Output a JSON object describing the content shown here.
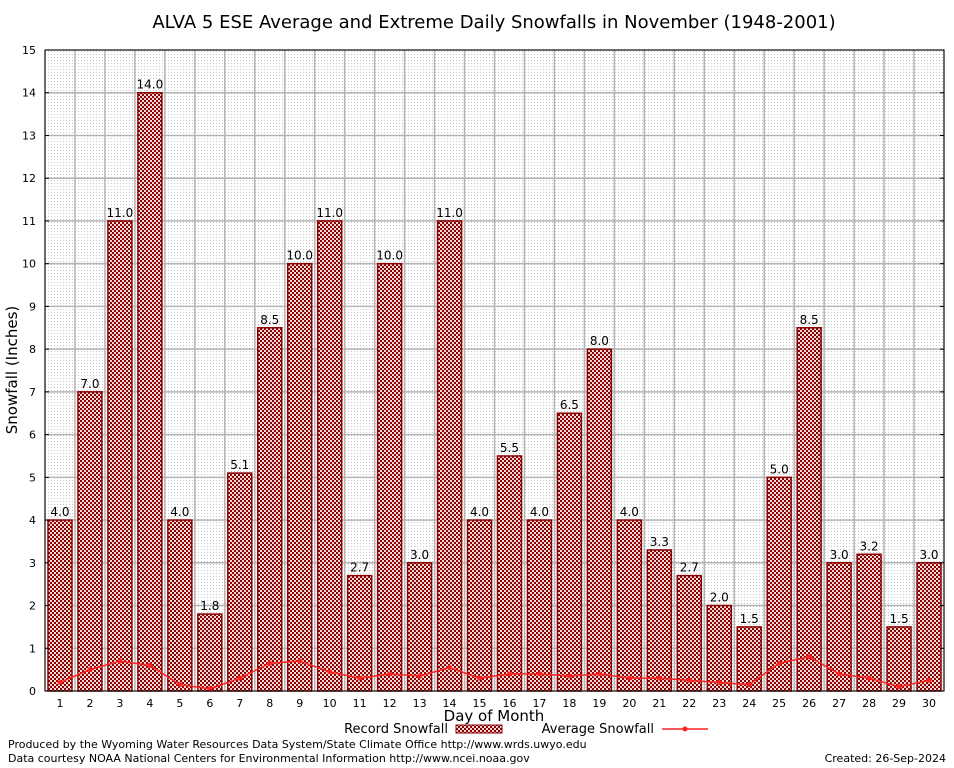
{
  "chart_data": {
    "type": "bar",
    "title": "ALVA 5 ESE Average and Extreme Daily Snowfalls in November (1948-2001)",
    "xlabel": "Day of Month",
    "ylabel": "Snowfall (Inches)",
    "ylim": [
      0,
      15
    ],
    "y_ticks": [
      0,
      1,
      2,
      3,
      4,
      5,
      6,
      7,
      8,
      9,
      10,
      11,
      12,
      13,
      14,
      15
    ],
    "grid": true,
    "legend_position": "bottom",
    "categories": [
      "1",
      "2",
      "3",
      "4",
      "5",
      "6",
      "7",
      "8",
      "9",
      "10",
      "11",
      "12",
      "13",
      "14",
      "15",
      "16",
      "17",
      "18",
      "19",
      "20",
      "21",
      "22",
      "23",
      "24",
      "25",
      "26",
      "27",
      "28",
      "29",
      "30"
    ],
    "series": [
      {
        "name": "Record Snowfall",
        "kind": "bar",
        "values": [
          4.0,
          7.0,
          11.0,
          14.0,
          4.0,
          1.8,
          5.1,
          8.5,
          10.0,
          11.0,
          2.7,
          10.0,
          3.0,
          11.0,
          4.0,
          5.5,
          4.0,
          6.5,
          8.0,
          4.0,
          3.3,
          2.7,
          2.0,
          1.5,
          5.0,
          8.5,
          3.0,
          3.2,
          1.5,
          3.0
        ],
        "labels": [
          "4.0",
          "7.0",
          "11.0",
          "14.0",
          "4.0",
          "1.8",
          "5.1",
          "8.5",
          "10.0",
          "11.0",
          "2.7",
          "10.0",
          "3.0",
          "11.0",
          "4.0",
          "5.5",
          "4.0",
          "6.5",
          "8.0",
          "4.0",
          "3.3",
          "2.7",
          "2.0",
          "1.5",
          "5.0",
          "8.5",
          "3.0",
          "3.2",
          "1.5",
          "3.0"
        ],
        "color": "#8b0000"
      },
      {
        "name": "Average Snowfall",
        "kind": "line",
        "values": [
          0.2,
          0.5,
          0.7,
          0.6,
          0.15,
          0.05,
          0.3,
          0.65,
          0.7,
          0.45,
          0.3,
          0.4,
          0.35,
          0.55,
          0.3,
          0.4,
          0.4,
          0.35,
          0.4,
          0.3,
          0.3,
          0.25,
          0.2,
          0.15,
          0.65,
          0.8,
          0.4,
          0.3,
          0.1,
          0.25
        ],
        "color": "#ff2020"
      }
    ]
  },
  "footer": {
    "credit_line_1": "Produced by the Wyoming Water Resources Data System/State Climate Office http://www.wrds.uwyo.edu",
    "credit_line_2": "Data courtesy NOAA National Centers for Environmental Information http://www.ncei.noaa.gov",
    "created": "Created:  26-Sep-2024"
  }
}
